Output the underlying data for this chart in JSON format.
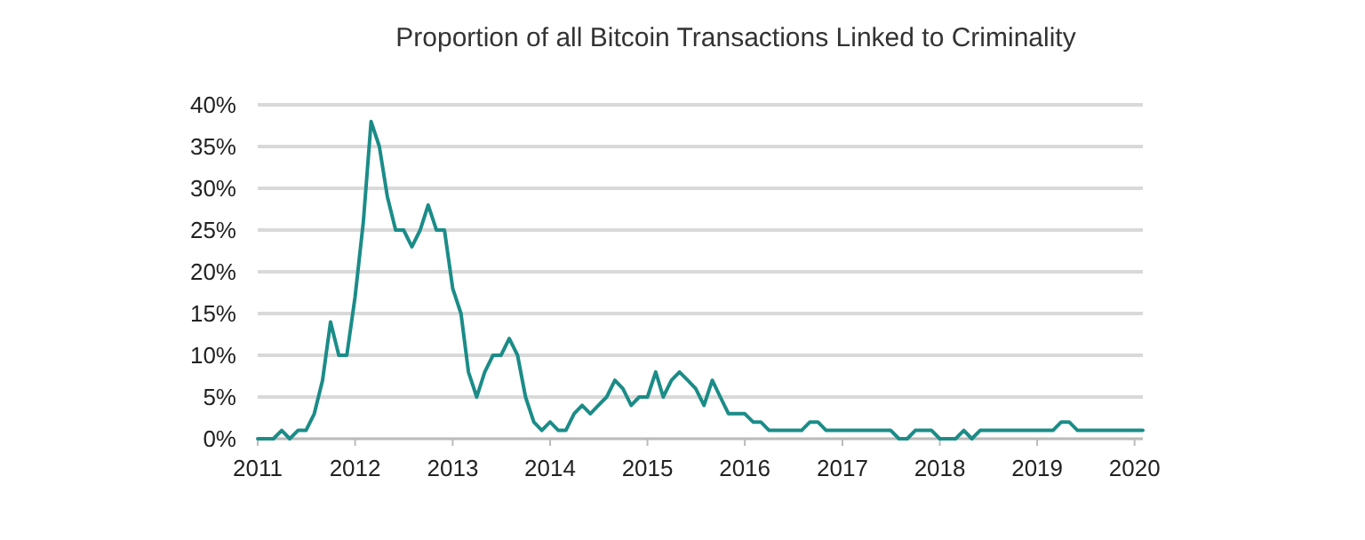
{
  "chart_data": {
    "type": "line",
    "title": "Proportion of all Bitcoin Transactions Linked to Criminality",
    "x": [
      "2011-01",
      "2011-02",
      "2011-03",
      "2011-04",
      "2011-05",
      "2011-06",
      "2011-07",
      "2011-08",
      "2011-09",
      "2011-10",
      "2011-11",
      "2011-12",
      "2012-01",
      "2012-02",
      "2012-03",
      "2012-04",
      "2012-05",
      "2012-06",
      "2012-07",
      "2012-08",
      "2012-09",
      "2012-10",
      "2012-11",
      "2012-12",
      "2013-01",
      "2013-02",
      "2013-03",
      "2013-04",
      "2013-05",
      "2013-06",
      "2013-07",
      "2013-08",
      "2013-09",
      "2013-10",
      "2013-11",
      "2013-12",
      "2014-01",
      "2014-02",
      "2014-03",
      "2014-04",
      "2014-05",
      "2014-06",
      "2014-07",
      "2014-08",
      "2014-09",
      "2014-10",
      "2014-11",
      "2014-12",
      "2015-01",
      "2015-02",
      "2015-03",
      "2015-04",
      "2015-05",
      "2015-06",
      "2015-07",
      "2015-08",
      "2015-09",
      "2015-10",
      "2015-11",
      "2015-12",
      "2016-01",
      "2016-02",
      "2016-03",
      "2016-04",
      "2016-05",
      "2016-06",
      "2016-07",
      "2016-08",
      "2016-09",
      "2016-10",
      "2016-11",
      "2016-12",
      "2017-01",
      "2017-02",
      "2017-03",
      "2017-04",
      "2017-05",
      "2017-06",
      "2017-07",
      "2017-08",
      "2017-09",
      "2017-10",
      "2017-11",
      "2017-12",
      "2018-01",
      "2018-02",
      "2018-03",
      "2018-04",
      "2018-05",
      "2018-06",
      "2018-07",
      "2018-08",
      "2018-09",
      "2018-10",
      "2018-11",
      "2018-12",
      "2019-01",
      "2019-02",
      "2019-03",
      "2019-04",
      "2019-05",
      "2019-06",
      "2019-07",
      "2019-08",
      "2019-09",
      "2019-10",
      "2019-11",
      "2019-12",
      "2020-01",
      "2020-02"
    ],
    "series": [
      {
        "color": "#1b8c88",
        "values": [
          0,
          0,
          0,
          1,
          0,
          1,
          1,
          3,
          7,
          14,
          10,
          10,
          17,
          26,
          38,
          35,
          29,
          25,
          25,
          23,
          25,
          28,
          25,
          25,
          18,
          15,
          8,
          5,
          8,
          10,
          10,
          12,
          10,
          5,
          2,
          1,
          2,
          1,
          1,
          3,
          4,
          3,
          4,
          5,
          7,
          6,
          4,
          5,
          5,
          8,
          5,
          7,
          8,
          7,
          6,
          4,
          7,
          5,
          3,
          3,
          3,
          2,
          2,
          1,
          1,
          1,
          1,
          1,
          2,
          2,
          1,
          1,
          1,
          1,
          1,
          1,
          1,
          1,
          1,
          0,
          0,
          1,
          1,
          1,
          0,
          0,
          0,
          1,
          0,
          1,
          1,
          1,
          1,
          1,
          1,
          1,
          1,
          1,
          1,
          2,
          2,
          1,
          1,
          1,
          1,
          1,
          1,
          1,
          1,
          1
        ]
      }
    ],
    "xlim": [
      "2011-01",
      "2020-02"
    ],
    "xticks": [
      {
        "value": "2011",
        "label": "2011"
      },
      {
        "value": "2012",
        "label": "2012"
      },
      {
        "value": "2013",
        "label": "2013"
      },
      {
        "value": "2014",
        "label": "2014"
      },
      {
        "value": "2015",
        "label": "2015"
      },
      {
        "value": "2016",
        "label": "2016"
      },
      {
        "value": "2017",
        "label": "2017"
      },
      {
        "value": "2018",
        "label": "2018"
      },
      {
        "value": "2019",
        "label": "2019"
      },
      {
        "value": "2020",
        "label": "2020"
      }
    ],
    "ylim": [
      0,
      40
    ],
    "yticks": [
      {
        "value": 0,
        "label": "0%"
      },
      {
        "value": 5,
        "label": "5%"
      },
      {
        "value": 10,
        "label": "10%"
      },
      {
        "value": 15,
        "label": "15%"
      },
      {
        "value": 20,
        "label": "20%"
      },
      {
        "value": 25,
        "label": "25%"
      },
      {
        "value": 30,
        "label": "30%"
      },
      {
        "value": 35,
        "label": "35%"
      },
      {
        "value": 40,
        "label": "40%"
      }
    ],
    "grid": "y",
    "marker": "none",
    "line_style": "solid"
  }
}
